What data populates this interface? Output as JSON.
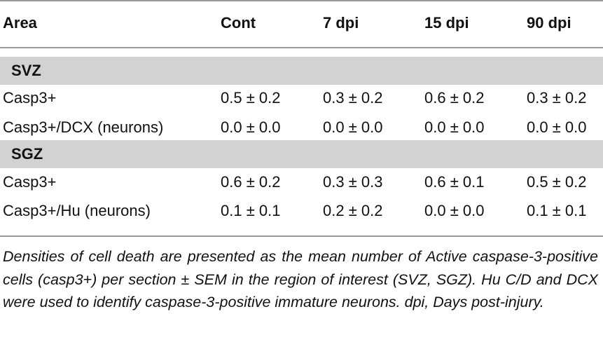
{
  "table": {
    "headers": [
      "Area",
      "Cont",
      "7 dpi",
      "15 dpi",
      "90 dpi"
    ],
    "sections": [
      {
        "label": "SVZ",
        "rows": [
          {
            "area": "Casp3+",
            "values": [
              "0.5 ± 0.2",
              "0.3 ± 0.2",
              "0.6 ± 0.2",
              "0.3 ± 0.2"
            ]
          },
          {
            "area": "Casp3+/DCX (neurons)",
            "values": [
              "0.0 ± 0.0",
              "0.0 ± 0.0",
              "0.0 ± 0.0",
              "0.0 ± 0.0"
            ]
          }
        ]
      },
      {
        "label": "SGZ",
        "rows": [
          {
            "area": "Casp3+",
            "values": [
              "0.6 ± 0.2",
              "0.3 ± 0.3",
              "0.6 ± 0.1",
              "0.5 ±  0.2"
            ]
          },
          {
            "area": "Casp3+/Hu (neurons)",
            "values": [
              "0.1 ± 0.1",
              "0.2 ± 0.2",
              "0.0 ± 0.0",
              "0.1 ± 0.1"
            ]
          }
        ]
      }
    ]
  },
  "caption": "Densities of cell death are presented as the mean number of Active caspase-3-positive cells (casp3+) per section ± SEM in the region of interest (SVZ, SGZ). Hu C/D and DCX were used to identify caspase-3-positive immature neurons. dpi, Days post-injury."
}
